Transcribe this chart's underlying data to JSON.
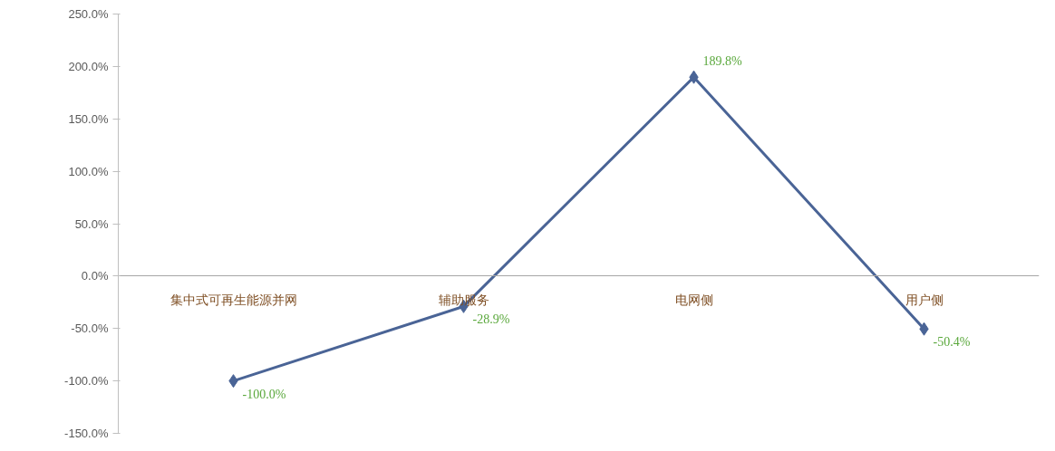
{
  "chart_data": {
    "type": "line",
    "categories": [
      "集中式可再生能源并网",
      "辅助服务",
      "电网侧",
      "用户侧"
    ],
    "series": [
      {
        "color": "#4a6496",
        "values": [
          -100.0,
          -28.9,
          189.8,
          -50.4
        ],
        "value_labels": [
          "-100.0%",
          "-28.9%",
          "189.8%",
          "-50.4%"
        ]
      }
    ],
    "ylim": [
      -150,
      250
    ],
    "yticks": [
      {
        "value": -150,
        "label": "-150.0%"
      },
      {
        "value": -100,
        "label": "-100.0%"
      },
      {
        "value": -50,
        "label": "-50.0%"
      },
      {
        "value": 0,
        "label": "0.0%"
      },
      {
        "value": 50,
        "label": "50.0%"
      },
      {
        "value": 100,
        "label": "100.0%"
      },
      {
        "value": 150,
        "label": "150.0%"
      },
      {
        "value": 200,
        "label": "200.0%"
      },
      {
        "value": 250,
        "label": "250.0%"
      }
    ],
    "marker": "diamond",
    "line_style": "solid"
  }
}
